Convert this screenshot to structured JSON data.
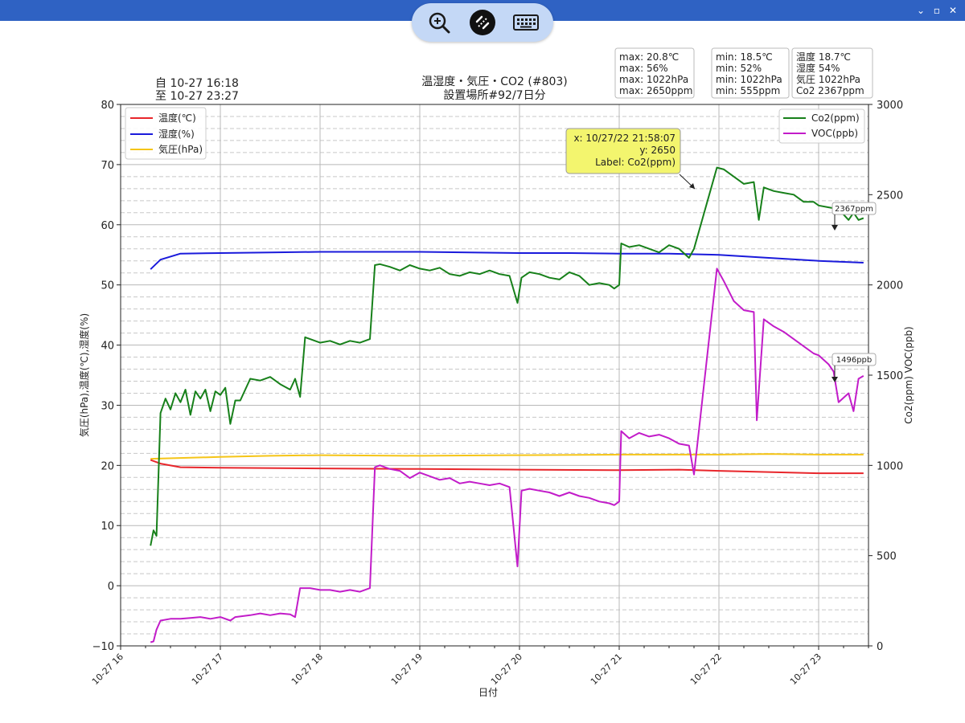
{
  "window": {
    "controls": [
      "⌄",
      "▫",
      "✕"
    ],
    "toolbar_icons": [
      "zoom-in-icon",
      "remote-connection-icon",
      "keyboard-icon"
    ],
    "titlebar_color": "#2f62c3"
  },
  "header": {
    "from_line": "自 10-27 16:18",
    "to_line": "至 10-27 23:27",
    "title_line1": "温湿度・気圧・CO2 (#803)",
    "title_line2": "設置場所#92/7日分"
  },
  "stats": {
    "max": [
      "max: 20.8℃",
      "max:   56%",
      "max: 1022hPa",
      "max: 2650ppm"
    ],
    "min": [
      "min:  18.5℃",
      "min:    52%",
      "min:  1022hPa",
      "min:   555ppm"
    ],
    "current": [
      "温度  18.7℃",
      "湿度     54%",
      "気圧  1022hPa",
      "Co2   2367ppm"
    ]
  },
  "tooltip": {
    "line1": "x: 10/27/22 21:58:07",
    "line2": "y: 2650",
    "line3": "Label: Co2(ppm)",
    "bg": "#f3f56e"
  },
  "annotations": {
    "co2_last": "2367ppm",
    "voc_last": "1496ppb"
  },
  "chart_data": {
    "type": "line",
    "title": "温湿度・気圧・CO2 (#803)",
    "subtitle": "設置場所#92/7日分",
    "xlabel": "日付",
    "ylabel_left": "気圧(hPa),温度(℃),湿度(%)",
    "ylabel_right": "Co2(ppm) VOC(ppb)",
    "x_range_hours": [
      16,
      23.5
    ],
    "x_ticks": [
      {
        "h": 16,
        "label": "10-27 16"
      },
      {
        "h": 17,
        "label": "10-27 17"
      },
      {
        "h": 18,
        "label": "10-27 18"
      },
      {
        "h": 19,
        "label": "10-27 19"
      },
      {
        "h": 20,
        "label": "10-27 20"
      },
      {
        "h": 21,
        "label": "10-27 21"
      },
      {
        "h": 22,
        "label": "10-27 22"
      },
      {
        "h": 23,
        "label": "10-27 23"
      }
    ],
    "ylim_left": [
      -10,
      80
    ],
    "yticks_left": [
      -10,
      0,
      10,
      20,
      30,
      40,
      50,
      60,
      70,
      80
    ],
    "ylim_right": [
      0,
      3000
    ],
    "yticks_right": [
      0,
      500,
      1000,
      1500,
      2000,
      2500,
      3000
    ],
    "grid": true,
    "legend_left": "top-left",
    "legend_right": "top-right",
    "series": [
      {
        "name": "温度(℃)",
        "axis": "left",
        "color": "#e8262b",
        "points": [
          [
            16.3,
            20.9
          ],
          [
            16.4,
            20.3
          ],
          [
            16.6,
            19.7
          ],
          [
            17,
            19.6
          ],
          [
            18,
            19.5
          ],
          [
            19,
            19.4
          ],
          [
            20,
            19.3
          ],
          [
            21,
            19.2
          ],
          [
            21.6,
            19.3
          ],
          [
            22,
            19.1
          ],
          [
            22.5,
            18.9
          ],
          [
            23,
            18.7
          ],
          [
            23.45,
            18.7
          ]
        ]
      },
      {
        "name": "湿度(%)",
        "axis": "left",
        "color": "#1a1adb",
        "points": [
          [
            16.3,
            52.6
          ],
          [
            16.4,
            54.2
          ],
          [
            16.6,
            55.2
          ],
          [
            17,
            55.3
          ],
          [
            17.5,
            55.4
          ],
          [
            18,
            55.5
          ],
          [
            18.5,
            55.5
          ],
          [
            19,
            55.5
          ],
          [
            19.5,
            55.4
          ],
          [
            20,
            55.3
          ],
          [
            20.5,
            55.3
          ],
          [
            21,
            55.2
          ],
          [
            21.5,
            55.2
          ],
          [
            22,
            55.0
          ],
          [
            22.5,
            54.5
          ],
          [
            23,
            54.0
          ],
          [
            23.45,
            53.7
          ]
        ]
      },
      {
        "name": "気圧(hPa)",
        "axis": "left",
        "color": "#f5c518",
        "points": [
          [
            16.3,
            21.1
          ],
          [
            17,
            21.4
          ],
          [
            17.5,
            21.6
          ],
          [
            18,
            21.7
          ],
          [
            19,
            21.6
          ],
          [
            20,
            21.7
          ],
          [
            21,
            21.8
          ],
          [
            22,
            21.8
          ],
          [
            22.5,
            21.9
          ],
          [
            23,
            21.8
          ],
          [
            23.45,
            21.8
          ]
        ]
      },
      {
        "name": "Co2(ppm)",
        "axis": "right",
        "color": "#17801a",
        "points": [
          [
            16.3,
            555
          ],
          [
            16.33,
            640
          ],
          [
            16.36,
            610
          ],
          [
            16.4,
            1290
          ],
          [
            16.45,
            1370
          ],
          [
            16.5,
            1310
          ],
          [
            16.55,
            1400
          ],
          [
            16.6,
            1350
          ],
          [
            16.65,
            1420
          ],
          [
            16.7,
            1280
          ],
          [
            16.75,
            1410
          ],
          [
            16.8,
            1370
          ],
          [
            16.85,
            1420
          ],
          [
            16.9,
            1300
          ],
          [
            16.95,
            1410
          ],
          [
            17,
            1390
          ],
          [
            17.05,
            1430
          ],
          [
            17.1,
            1230
          ],
          [
            17.15,
            1360
          ],
          [
            17.2,
            1360
          ],
          [
            17.3,
            1480
          ],
          [
            17.4,
            1470
          ],
          [
            17.5,
            1490
          ],
          [
            17.6,
            1450
          ],
          [
            17.7,
            1420
          ],
          [
            17.75,
            1480
          ],
          [
            17.8,
            1380
          ],
          [
            17.85,
            1710
          ],
          [
            17.9,
            1700
          ],
          [
            18,
            1680
          ],
          [
            18.1,
            1690
          ],
          [
            18.2,
            1670
          ],
          [
            18.3,
            1690
          ],
          [
            18.4,
            1680
          ],
          [
            18.5,
            1700
          ],
          [
            18.55,
            2110
          ],
          [
            18.6,
            2115
          ],
          [
            18.7,
            2100
          ],
          [
            18.8,
            2080
          ],
          [
            18.9,
            2110
          ],
          [
            19,
            2090
          ],
          [
            19.1,
            2080
          ],
          [
            19.2,
            2095
          ],
          [
            19.3,
            2060
          ],
          [
            19.4,
            2050
          ],
          [
            19.5,
            2070
          ],
          [
            19.6,
            2060
          ],
          [
            19.7,
            2080
          ],
          [
            19.8,
            2060
          ],
          [
            19.9,
            2050
          ],
          [
            19.98,
            1900
          ],
          [
            20.02,
            2040
          ],
          [
            20.1,
            2070
          ],
          [
            20.2,
            2060
          ],
          [
            20.3,
            2040
          ],
          [
            20.4,
            2030
          ],
          [
            20.5,
            2070
          ],
          [
            20.6,
            2050
          ],
          [
            20.7,
            2000
          ],
          [
            20.8,
            2010
          ],
          [
            20.9,
            2000
          ],
          [
            20.95,
            1980
          ],
          [
            21,
            2000
          ],
          [
            21.02,
            2230
          ],
          [
            21.1,
            2210
          ],
          [
            21.2,
            2220
          ],
          [
            21.3,
            2200
          ],
          [
            21.4,
            2180
          ],
          [
            21.5,
            2220
          ],
          [
            21.6,
            2200
          ],
          [
            21.7,
            2150
          ],
          [
            21.75,
            2200
          ],
          [
            21.98,
            2650
          ],
          [
            22.05,
            2640
          ],
          [
            22.15,
            2600
          ],
          [
            22.25,
            2560
          ],
          [
            22.35,
            2570
          ],
          [
            22.4,
            2360
          ],
          [
            22.45,
            2540
          ],
          [
            22.55,
            2520
          ],
          [
            22.65,
            2510
          ],
          [
            22.75,
            2500
          ],
          [
            22.85,
            2460
          ],
          [
            22.95,
            2460
          ],
          [
            23,
            2440
          ],
          [
            23.1,
            2430
          ],
          [
            23.2,
            2420
          ],
          [
            23.3,
            2360
          ],
          [
            23.35,
            2400
          ],
          [
            23.4,
            2360
          ],
          [
            23.45,
            2370
          ]
        ]
      },
      {
        "name": "VOC(ppb)",
        "axis": "right",
        "color": "#c21cc9",
        "points": [
          [
            16.3,
            20
          ],
          [
            16.33,
            25
          ],
          [
            16.36,
            90
          ],
          [
            16.4,
            140
          ],
          [
            16.5,
            150
          ],
          [
            16.6,
            150
          ],
          [
            16.7,
            155
          ],
          [
            16.8,
            160
          ],
          [
            16.9,
            150
          ],
          [
            17,
            160
          ],
          [
            17.1,
            140
          ],
          [
            17.15,
            160
          ],
          [
            17.3,
            170
          ],
          [
            17.4,
            180
          ],
          [
            17.5,
            170
          ],
          [
            17.6,
            180
          ],
          [
            17.7,
            175
          ],
          [
            17.75,
            160
          ],
          [
            17.8,
            320
          ],
          [
            17.9,
            320
          ],
          [
            18,
            310
          ],
          [
            18.1,
            310
          ],
          [
            18.2,
            300
          ],
          [
            18.3,
            310
          ],
          [
            18.4,
            300
          ],
          [
            18.5,
            320
          ],
          [
            18.55,
            990
          ],
          [
            18.6,
            1000
          ],
          [
            18.7,
            980
          ],
          [
            18.8,
            970
          ],
          [
            18.9,
            930
          ],
          [
            19,
            960
          ],
          [
            19.1,
            940
          ],
          [
            19.2,
            920
          ],
          [
            19.3,
            930
          ],
          [
            19.4,
            900
          ],
          [
            19.5,
            910
          ],
          [
            19.6,
            900
          ],
          [
            19.7,
            890
          ],
          [
            19.8,
            900
          ],
          [
            19.9,
            880
          ],
          [
            19.98,
            440
          ],
          [
            20.02,
            860
          ],
          [
            20.1,
            870
          ],
          [
            20.2,
            860
          ],
          [
            20.3,
            850
          ],
          [
            20.4,
            830
          ],
          [
            20.5,
            850
          ],
          [
            20.6,
            830
          ],
          [
            20.7,
            820
          ],
          [
            20.8,
            800
          ],
          [
            20.9,
            790
          ],
          [
            20.95,
            780
          ],
          [
            21,
            800
          ],
          [
            21.02,
            1190
          ],
          [
            21.1,
            1150
          ],
          [
            21.2,
            1180
          ],
          [
            21.3,
            1160
          ],
          [
            21.4,
            1170
          ],
          [
            21.5,
            1150
          ],
          [
            21.6,
            1120
          ],
          [
            21.7,
            1110
          ],
          [
            21.75,
            950
          ],
          [
            21.98,
            2090
          ],
          [
            22.05,
            2020
          ],
          [
            22.15,
            1910
          ],
          [
            22.25,
            1860
          ],
          [
            22.35,
            1850
          ],
          [
            22.38,
            1250
          ],
          [
            22.45,
            1810
          ],
          [
            22.55,
            1770
          ],
          [
            22.65,
            1740
          ],
          [
            22.75,
            1700
          ],
          [
            22.85,
            1660
          ],
          [
            22.95,
            1620
          ],
          [
            23,
            1610
          ],
          [
            23.1,
            1560
          ],
          [
            23.15,
            1520
          ],
          [
            23.2,
            1350
          ],
          [
            23.3,
            1400
          ],
          [
            23.35,
            1300
          ],
          [
            23.4,
            1480
          ],
          [
            23.45,
            1496
          ]
        ]
      }
    ]
  }
}
